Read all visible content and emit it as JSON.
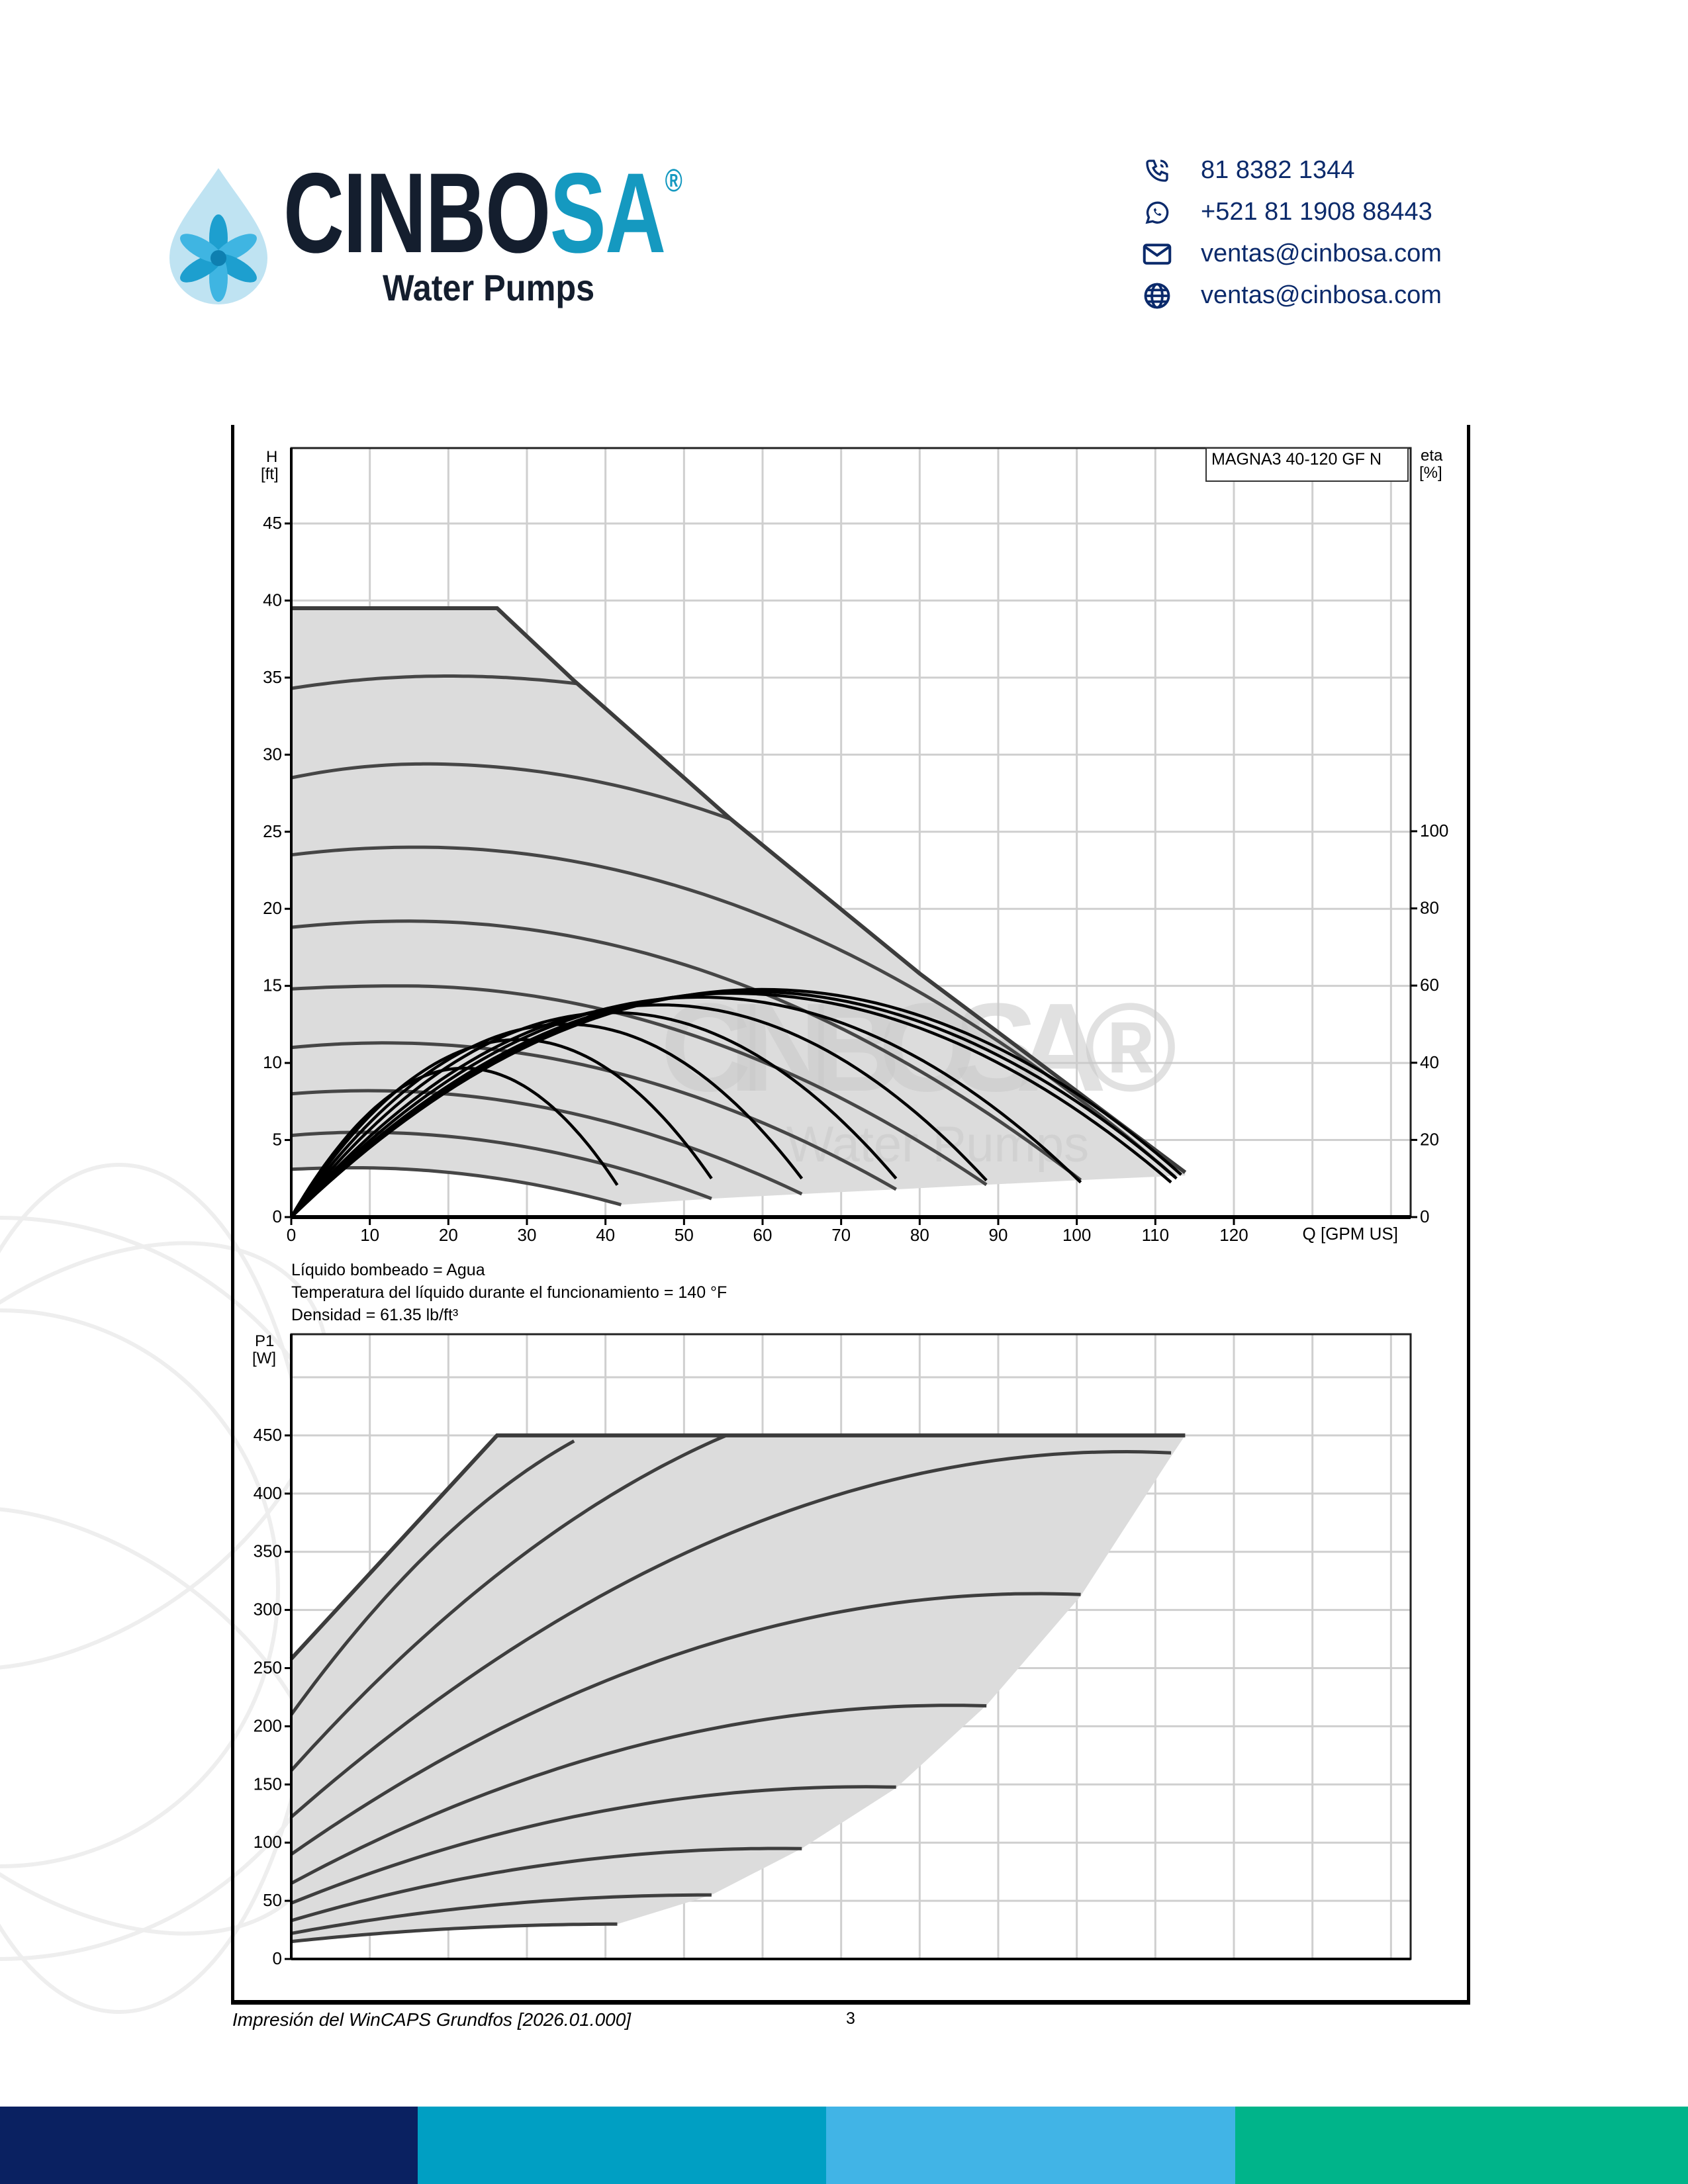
{
  "header": {
    "brand": {
      "name_part1": "CINBO",
      "name_part2": "SA",
      "registered": "®",
      "tagline": "Water Pumps"
    },
    "contacts": [
      {
        "icon": "phone-icon",
        "text": "81 8382 1344"
      },
      {
        "icon": "whatsapp-icon",
        "text": "+521 81 1908 88443"
      },
      {
        "icon": "mail-icon",
        "text": "ventas@cinbosa.com"
      },
      {
        "icon": "globe-icon",
        "text": "ventas@cinbosa.com"
      }
    ],
    "colors": {
      "navy": "#0b2a6b",
      "brand_dark": "#141e2e",
      "brand_teal": "#1599c0"
    }
  },
  "watermark": {
    "name": "CINBOSA",
    "registered": "®",
    "tagline": "Water Pumps"
  },
  "notes": [
    "Líquido bombeado = Agua",
    "Temperatura del líquido durante el funcionamiento = 140 °F",
    "Densidad = 61.35 lb/ft³"
  ],
  "chart_data": [
    {
      "type": "line",
      "title": "MAGNA3 40-120 GF N",
      "xlabel": "Q [GPM US]",
      "ylabel_name": "H",
      "ylabel_unit": "[ft]",
      "y2label_name": "eta",
      "y2label_unit": "[%]",
      "xlim": [
        0,
        142.5
      ],
      "ylim": [
        0,
        49.9
      ],
      "y2lim": [
        0,
        199.3
      ],
      "xticks": [
        "0",
        "10",
        "20",
        "30",
        "40",
        "50",
        "60",
        "70",
        "80",
        "90",
        "100",
        "110",
        "120"
      ],
      "yticks": [
        "0",
        "5",
        "10",
        "15",
        "20",
        "25",
        "30",
        "35",
        "40",
        "45"
      ],
      "y2ticks": [
        "0",
        "20",
        "40",
        "60",
        "80",
        "100"
      ],
      "grid": true,
      "max_curve": [
        [
          0,
          39.5
        ],
        [
          26.2,
          39.5
        ],
        [
          36,
          34.8
        ],
        [
          56,
          25.8
        ],
        [
          80,
          15.8
        ],
        [
          113.8,
          2.9
        ]
      ],
      "lower_boundary": [
        [
          42,
          0.8
        ],
        [
          53.5,
          1.2
        ],
        [
          65,
          1.5
        ],
        [
          77,
          1.8
        ],
        [
          88.5,
          2.1
        ],
        [
          100.5,
          2.4
        ],
        [
          113.8,
          2.7
        ]
      ],
      "head_curves": [
        {
          "H0": 3.1,
          "Qpeak": 8,
          "Hpeak": 3.2,
          "Qend": 42,
          "Hend": 0.8
        },
        {
          "H0": 5.3,
          "Qpeak": 9,
          "Hpeak": 5.5,
          "Qend": 53.5,
          "Hend": 1.2
        },
        {
          "H0": 8.0,
          "Qpeak": 10,
          "Hpeak": 8.2,
          "Qend": 65,
          "Hend": 1.5
        },
        {
          "H0": 11.0,
          "Qpeak": 12,
          "Hpeak": 11.3,
          "Qend": 77,
          "Hend": 1.8
        },
        {
          "H0": 14.8,
          "Qpeak": 14,
          "Hpeak": 15.0,
          "Qend": 88.5,
          "Hend": 2.1
        },
        {
          "H0": 18.8,
          "Qpeak": 15,
          "Hpeak": 19.2,
          "Qend": 100.5,
          "Hend": 2.4
        },
        {
          "H0": 23.5,
          "Qpeak": 16,
          "Hpeak": 24.0,
          "Qend": 112.5,
          "Hend": 2.6
        },
        {
          "H0": 28.5,
          "Qpeak": 17,
          "Hpeak": 29.4,
          "Qend": 56,
          "Hend": 25.8
        },
        {
          "H0": 34.3,
          "Qpeak": 20,
          "Hpeak": 35.1,
          "Qend": 36.5,
          "Hend": 34.6
        }
      ],
      "efficiency_curves": [
        {
          "Qpeak": 22,
          "eta_peak": 38.6,
          "Qend": 41.5,
          "eta_end": 8.3
        },
        {
          "Qpeak": 29,
          "eta_peak": 46,
          "Qend": 53.5,
          "eta_end": 10
        },
        {
          "Qpeak": 35,
          "eta_peak": 50,
          "Qend": 65,
          "eta_end": 10
        },
        {
          "Qpeak": 41,
          "eta_peak": 53,
          "Qend": 77,
          "eta_end": 10
        },
        {
          "Qpeak": 47,
          "eta_peak": 55,
          "Qend": 88.5,
          "eta_end": 9.5
        },
        {
          "Qpeak": 52,
          "eta_peak": 57,
          "Qend": 100.5,
          "eta_end": 9
        },
        {
          "Qpeak": 56,
          "eta_peak": 58,
          "Qend": 112,
          "eta_end": 9
        },
        {
          "Qpeak": 58,
          "eta_peak": 58.5,
          "Qend": 112.7,
          "eta_end": 10
        },
        {
          "Qpeak": 60,
          "eta_peak": 59,
          "Qend": 113.3,
          "eta_end": 11
        }
      ]
    },
    {
      "type": "line",
      "title": "",
      "ylabel_name": "P1",
      "ylabel_unit": "[W]",
      "xlim": [
        0,
        142.5
      ],
      "ylim": [
        0,
        536
      ],
      "yticks": [
        "0",
        "50",
        "100",
        "150",
        "200",
        "250",
        "300",
        "350",
        "400",
        "450"
      ],
      "grid": true,
      "max_curve": [
        [
          0,
          258
        ],
        [
          26.2,
          450
        ],
        [
          113.8,
          450
        ]
      ],
      "lower_boundary": [
        [
          41.5,
          30
        ],
        [
          53.5,
          55
        ],
        [
          65,
          95
        ],
        [
          77,
          147
        ],
        [
          88.5,
          218
        ],
        [
          100.5,
          312
        ],
        [
          112,
          432
        ],
        [
          113.8,
          450
        ]
      ],
      "power_curves": [
        {
          "P0": 15,
          "Qpeak": 42,
          "Ppeak": 30,
          "Qend": 41.5
        },
        {
          "P0": 22,
          "Qpeak": 53,
          "Ppeak": 55,
          "Qend": 53.5
        },
        {
          "P0": 33,
          "Qpeak": 62,
          "Ppeak": 95,
          "Qend": 65
        },
        {
          "P0": 48,
          "Qpeak": 73,
          "Ppeak": 148,
          "Qend": 77
        },
        {
          "P0": 65,
          "Qpeak": 84,
          "Ppeak": 218,
          "Qend": 88.5
        },
        {
          "P0": 90,
          "Qpeak": 95,
          "Ppeak": 314,
          "Qend": 100.5
        },
        {
          "P0": 122,
          "Qpeak": 106,
          "Ppeak": 436,
          "Qend": 112
        },
        {
          "P0": 162,
          "Qpeak": 90,
          "Ppeak": 500,
          "Qend": 55.5
        },
        {
          "P0": 210,
          "Qpeak": 60,
          "Ppeak": 490,
          "Qend": 36
        }
      ]
    }
  ],
  "footer": {
    "print_text": "Impresión del WinCAPS Grundfos [2026.01.000]",
    "page_number": "3",
    "band_colors": [
      "#0a2161",
      "#009fc3",
      "#41b4e6",
      "#00b48a"
    ]
  }
}
